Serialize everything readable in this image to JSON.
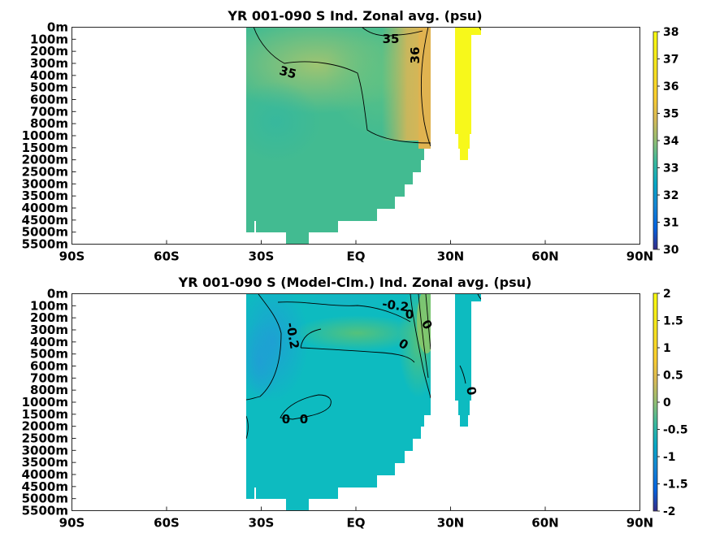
{
  "figure": {
    "depth_ticks": [
      "0m",
      "100m",
      "200m",
      "300m",
      "400m",
      "500m",
      "600m",
      "700m",
      "800m",
      "1000m",
      "1500m",
      "2000m",
      "2500m",
      "3000m",
      "3500m",
      "4000m",
      "4500m",
      "5000m",
      "5500m"
    ],
    "lat_ticks": [
      "90S",
      "60S",
      "30S",
      "EQ",
      "30N",
      "60N",
      "90N"
    ]
  },
  "chart_data": [
    {
      "type": "heatmap",
      "title": "YR 001-090 S Ind. Zonal avg. (psu)",
      "xlabel": "",
      "ylabel": "",
      "xlim": [
        -90,
        90
      ],
      "colorbar": {
        "min": 30,
        "max": 38,
        "ticks": [
          "30",
          "31",
          "32",
          "33",
          "34",
          "35",
          "36",
          "37",
          "38"
        ],
        "colormap": "parula"
      },
      "contour_labels": [
        "35",
        "36",
        "35"
      ],
      "description_values": {
        "ocean_min_lat": -35,
        "ocean_max_lat": 25,
        "red_sea_lat_range": [
          30,
          33
        ],
        "deep_water_value": 34.7,
        "arabian_sea_value": 36.3,
        "red_sea_value": 38
      },
      "colors": {
        "background": "#ffffff",
        "land": "#ffffff",
        "contour": "#000000"
      }
    },
    {
      "type": "heatmap",
      "title": "YR 001-090 S (Model-Clm.) Ind. Zonal avg. (psu)",
      "xlabel": "",
      "ylabel": "",
      "xlim": [
        -90,
        90
      ],
      "colorbar": {
        "min": -2,
        "max": 2,
        "ticks": [
          "-2",
          "-1.5",
          "-1",
          "-0.5",
          "0",
          "0.5",
          "1",
          "1.5",
          "2"
        ],
        "colormap": "parula"
      },
      "contour_labels": [
        "-0.2",
        "-0.2",
        "0",
        "0",
        "0",
        "0",
        "0",
        "0"
      ],
      "description_values": {
        "deep_water_value": 0.0,
        "southern_subsurface_value": -0.3,
        "northern_upper_value": 0.5
      },
      "colors": {
        "background": "#ffffff",
        "land": "#ffffff",
        "contour": "#000000"
      }
    }
  ]
}
